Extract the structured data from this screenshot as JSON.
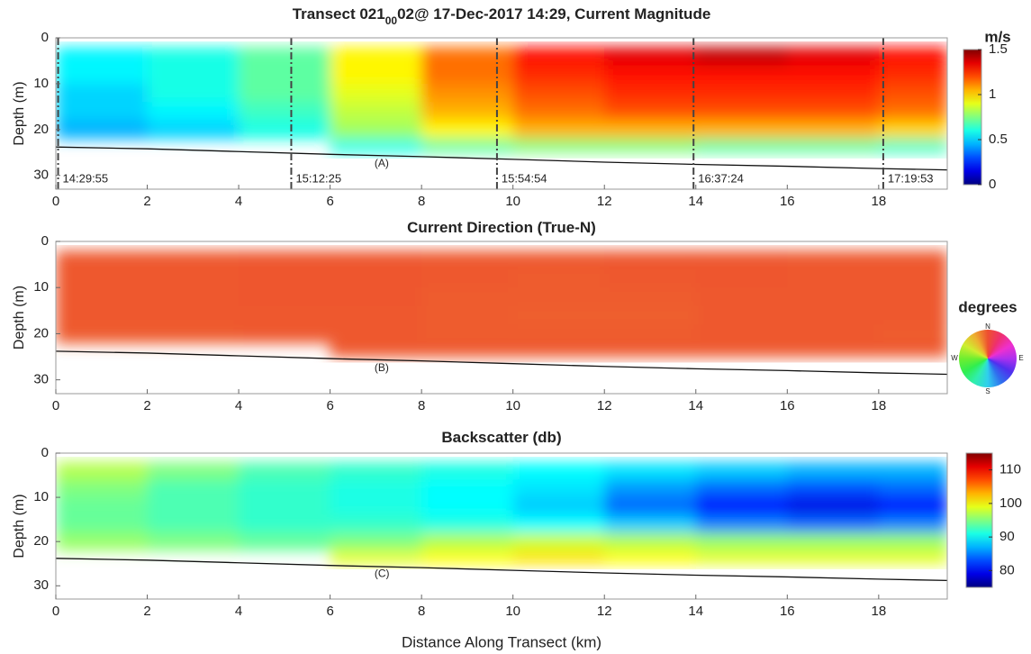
{
  "chart_data": [
    {
      "type": "heatmap",
      "title": [
        "Transect 021",
        "00",
        "02@ 17-Dec-2017 14:29, Current Magnitude"
      ],
      "ylabel": "Depth (m)",
      "annotation": "(A)",
      "xlim": [
        0,
        19.5
      ],
      "xticks": [
        0,
        2,
        4,
        6,
        8,
        10,
        12,
        14,
        16,
        18
      ],
      "ylim": [
        0,
        33
      ],
      "yticks": [
        0,
        10,
        20,
        30
      ],
      "y_reversed": true,
      "colormap": "jet",
      "x_edges": [
        0,
        2,
        4,
        6,
        8,
        10,
        12,
        14,
        16,
        18,
        19.5
      ],
      "depth_edges": [
        2,
        6,
        10,
        14,
        18,
        22,
        25
      ],
      "z": [
        [
          0.55,
          0.6,
          0.7,
          0.95,
          1.15,
          1.3,
          1.35,
          1.4,
          1.35,
          1.3
        ],
        [
          0.55,
          0.6,
          0.7,
          0.95,
          1.15,
          1.25,
          1.3,
          1.3,
          1.3,
          1.25
        ],
        [
          0.5,
          0.6,
          0.7,
          0.9,
          1.1,
          1.2,
          1.25,
          1.25,
          1.25,
          1.2
        ],
        [
          0.5,
          0.55,
          0.65,
          0.85,
          1.05,
          1.15,
          1.2,
          1.2,
          1.2,
          1.15
        ],
        [
          0.45,
          0.5,
          0.6,
          0.8,
          0.95,
          1.05,
          1.05,
          1.05,
          1.05,
          1.0
        ],
        [
          null,
          null,
          null,
          0.6,
          0.7,
          0.75,
          0.75,
          0.7,
          0.7,
          0.65
        ]
      ],
      "bottom_x": [
        0,
        2,
        4,
        6,
        8,
        10,
        12,
        14,
        16,
        18,
        19.5
      ],
      "bottom_depth": [
        23.8,
        24.2,
        24.8,
        25.4,
        25.9,
        26.5,
        27.1,
        27.6,
        28.0,
        28.5,
        28.8
      ],
      "markers": [
        {
          "x": 0.05,
          "label": "14:29:55"
        },
        {
          "x": 5.15,
          "label": "15:12:25"
        },
        {
          "x": 9.65,
          "label": "15:54:54"
        },
        {
          "x": 13.95,
          "label": "16:37:24"
        },
        {
          "x": 18.1,
          "label": "17:19:53"
        }
      ],
      "colorbar": {
        "label": "m/s",
        "lim": [
          0,
          1.5
        ],
        "ticks": [
          0,
          0.5,
          1,
          1.5
        ]
      }
    },
    {
      "type": "heatmap",
      "title": [
        "Current Direction (True-N)"
      ],
      "ylabel": "Depth (m)",
      "annotation": "(B)",
      "xlim": [
        0,
        19.5
      ],
      "xticks": [
        0,
        2,
        4,
        6,
        8,
        10,
        12,
        14,
        16,
        18
      ],
      "ylim": [
        0,
        33
      ],
      "yticks": [
        0,
        10,
        20,
        30
      ],
      "y_reversed": true,
      "colormap": "wheel",
      "x_edges": [
        0,
        2,
        4,
        6,
        8,
        10,
        12,
        14,
        16,
        18,
        19.5
      ],
      "depth_edges": [
        2,
        6,
        10,
        14,
        18,
        22,
        25
      ],
      "z": [
        [
          357,
          357,
          358,
          358,
          357,
          357,
          358,
          358,
          357,
          357
        ],
        [
          357,
          357,
          358,
          358,
          357,
          356,
          357,
          358,
          357,
          357
        ],
        [
          357,
          357,
          358,
          358,
          356,
          356,
          356,
          357,
          357,
          357
        ],
        [
          357,
          357,
          357,
          357,
          356,
          355,
          355,
          357,
          357,
          357
        ],
        [
          356,
          356,
          357,
          357,
          356,
          356,
          356,
          357,
          357,
          356
        ],
        [
          null,
          null,
          null,
          357,
          357,
          357,
          357,
          357,
          357,
          357
        ]
      ],
      "bottom_x": [
        0,
        2,
        4,
        6,
        8,
        10,
        12,
        14,
        16,
        18,
        19.5
      ],
      "bottom_depth": [
        23.8,
        24.2,
        24.8,
        25.4,
        25.9,
        26.5,
        27.1,
        27.6,
        28.0,
        28.5,
        28.8
      ],
      "colorbar": {
        "label": "degrees",
        "compass": [
          "N",
          "E",
          "S",
          "W"
        ]
      }
    },
    {
      "type": "heatmap",
      "title": [
        "Backscatter (db)"
      ],
      "ylabel": "Depth (m)",
      "xlabel": "Distance Along Transect (km)",
      "annotation": "(C)",
      "xlim": [
        0,
        19.5
      ],
      "xticks": [
        0,
        2,
        4,
        6,
        8,
        10,
        12,
        14,
        16,
        18
      ],
      "ylim": [
        0,
        33
      ],
      "yticks": [
        0,
        10,
        20,
        30
      ],
      "y_reversed": true,
      "colormap": "jet",
      "x_edges": [
        0,
        2,
        4,
        6,
        8,
        10,
        12,
        14,
        16,
        18,
        19.5
      ],
      "depth_edges": [
        2,
        6,
        10,
        14,
        18,
        22,
        25
      ],
      "z": [
        [
          97,
          95,
          93,
          92,
          91,
          90,
          89,
          88,
          87,
          87
        ],
        [
          95,
          93,
          92,
          91,
          90,
          89,
          86,
          84,
          83,
          84
        ],
        [
          94,
          93,
          92,
          91,
          90,
          88,
          84,
          80,
          79,
          80
        ],
        [
          94,
          93,
          92,
          92,
          91,
          90,
          88,
          85,
          84,
          85
        ],
        [
          96,
          95,
          94,
          95,
          97,
          98,
          97,
          96,
          96,
          96
        ],
        [
          null,
          null,
          null,
          99,
          100,
          101,
          100,
          99,
          99,
          99
        ]
      ],
      "bottom_x": [
        0,
        2,
        4,
        6,
        8,
        10,
        12,
        14,
        16,
        18,
        19.5
      ],
      "bottom_depth": [
        23.8,
        24.2,
        24.8,
        25.4,
        25.9,
        26.5,
        27.1,
        27.6,
        28.0,
        28.5,
        28.8
      ],
      "colorbar": {
        "lim": [
          75,
          115
        ],
        "ticks": [
          80,
          90,
          100,
          110
        ]
      }
    }
  ]
}
